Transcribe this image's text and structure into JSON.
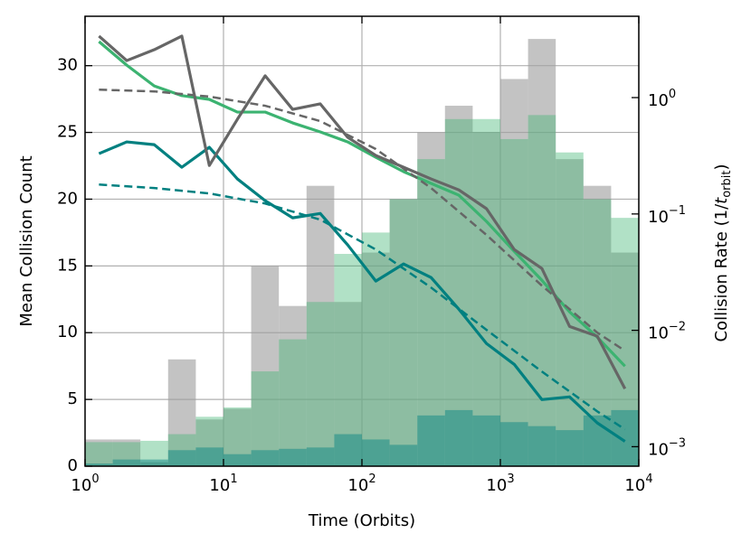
{
  "chart_data": {
    "type": "histogram",
    "xlabel": "Time (Orbits)",
    "ylabel": "Mean Collision Count",
    "y2label": {
      "text": "Collision Rate (1/",
      "var": "t",
      "sub": "orbit",
      "close": ")"
    },
    "xscale": "log",
    "y2scale": "log",
    "grid": true,
    "xlim": [
      1,
      10000
    ],
    "ylim": [
      0,
      33.7
    ],
    "y2lim": [
      0.00068,
      5.0
    ],
    "xticks": [
      {
        "value": 1,
        "label": "10",
        "exp": "0"
      },
      {
        "value": 10,
        "label": "10",
        "exp": "1"
      },
      {
        "value": 100,
        "label": "10",
        "exp": "2"
      },
      {
        "value": 1000,
        "label": "10",
        "exp": "3"
      },
      {
        "value": 10000,
        "label": "10",
        "exp": "4"
      }
    ],
    "yticks": [
      0,
      5,
      10,
      15,
      20,
      25,
      30
    ],
    "y2ticks": [
      {
        "value": 0.001,
        "label": "10",
        "exp": "−3"
      },
      {
        "value": 0.01,
        "label": "10",
        "exp": "−2"
      },
      {
        "value": 0.1,
        "label": "10",
        "exp": "−1"
      },
      {
        "value": 1,
        "label": "10",
        "exp": "0"
      }
    ],
    "bins": [
      1,
      1.585,
      2.512,
      3.981,
      6.31,
      10,
      15.85,
      25.12,
      39.81,
      63.1,
      100,
      158.5,
      251.2,
      398.1,
      631,
      1000,
      1585,
      2512,
      3981,
      6310,
      10000
    ],
    "series": [
      {
        "color": "#9e9e9e",
        "opacity": 0.62,
        "values": [
          2,
          2,
          0.3,
          8,
          3.5,
          4.3,
          15,
          12,
          21,
          12.3,
          16,
          20,
          25,
          27,
          25,
          29,
          32,
          23,
          21,
          16
        ]
      },
      {
        "color": "#3cb371",
        "opacity": 0.4,
        "values": [
          1.8,
          1.8,
          1.9,
          2.4,
          3.7,
          4.4,
          7.1,
          9.5,
          12.3,
          15.9,
          17.5,
          20,
          23,
          26,
          26,
          24.5,
          26.3,
          23.5,
          20,
          18.6
        ]
      },
      {
        "color": "#008080",
        "opacity": 0.45,
        "values": [
          0.2,
          0.5,
          0.5,
          1.2,
          1.4,
          0.9,
          1.2,
          1.3,
          1.4,
          2.4,
          2.0,
          1.6,
          3.8,
          4.2,
          3.8,
          3.3,
          3.0,
          2.7,
          3.8,
          4.2
        ]
      }
    ],
    "line_series": [
      {
        "color": "#3cb371",
        "style": "solid",
        "axis": "y2",
        "x": [
          1.26,
          2.0,
          3.16,
          5.0,
          7.9,
          12.6,
          20,
          31.6,
          50,
          79,
          126,
          200,
          316,
          501,
          794,
          1259,
          1995,
          3162,
          5012,
          7943
        ],
        "values": [
          3.03,
          1.9,
          1.26,
          1.04,
          0.965,
          0.751,
          0.751,
          0.606,
          0.507,
          0.416,
          0.307,
          0.231,
          0.183,
          0.145,
          0.0862,
          0.0478,
          0.0269,
          0.0144,
          0.00873,
          0.00492
        ]
      },
      {
        "color": "#008080",
        "style": "solid",
        "axis": "y2",
        "x": [
          1.26,
          2.0,
          3.16,
          5.0,
          7.9,
          12.6,
          20,
          31.6,
          50,
          79,
          126,
          200,
          316,
          501,
          794,
          1259,
          1995,
          3162,
          5012,
          7943
        ],
        "values": [
          0.33,
          0.416,
          0.394,
          0.252,
          0.374,
          0.2,
          0.13,
          0.0926,
          0.101,
          0.0541,
          0.0265,
          0.0372,
          0.0284,
          0.0152,
          0.0077,
          0.0051,
          0.00254,
          0.00268,
          0.0016,
          0.00111
        ]
      },
      {
        "color": "#666666",
        "style": "solid",
        "axis": "y2",
        "x": [
          1.26,
          2.0,
          3.16,
          5.0,
          7.9,
          12.6,
          20,
          31.6,
          50,
          79,
          126,
          200,
          316,
          501,
          794,
          1259,
          1995,
          3162,
          5012,
          7943
        ],
        "values": [
          3.38,
          2.08,
          2.58,
          3.38,
          0.261,
          0.651,
          1.54,
          0.792,
          0.883,
          0.455,
          0.318,
          0.252,
          0.2,
          0.161,
          0.111,
          0.0495,
          0.034,
          0.0108,
          0.0089,
          0.00315
        ]
      },
      {
        "color": "#666666",
        "style": "dashed",
        "axis": "y2",
        "x": [
          1.26,
          3.16,
          7.9,
          20,
          50,
          126,
          316,
          794,
          1995,
          5012,
          7943
        ],
        "values": [
          1.17,
          1.13,
          1.02,
          0.851,
          0.628,
          0.361,
          0.167,
          0.066,
          0.0242,
          0.00955,
          0.00667
        ]
      },
      {
        "color": "#008080",
        "style": "dashed",
        "axis": "y2",
        "x": [
          1.26,
          3.16,
          7.9,
          20,
          50,
          126,
          316,
          794,
          1995,
          5012,
          7943
        ],
        "values": [
          0.179,
          0.167,
          0.15,
          0.123,
          0.0893,
          0.0495,
          0.0233,
          0.0101,
          0.00442,
          0.00201,
          0.00141
        ]
      }
    ]
  }
}
